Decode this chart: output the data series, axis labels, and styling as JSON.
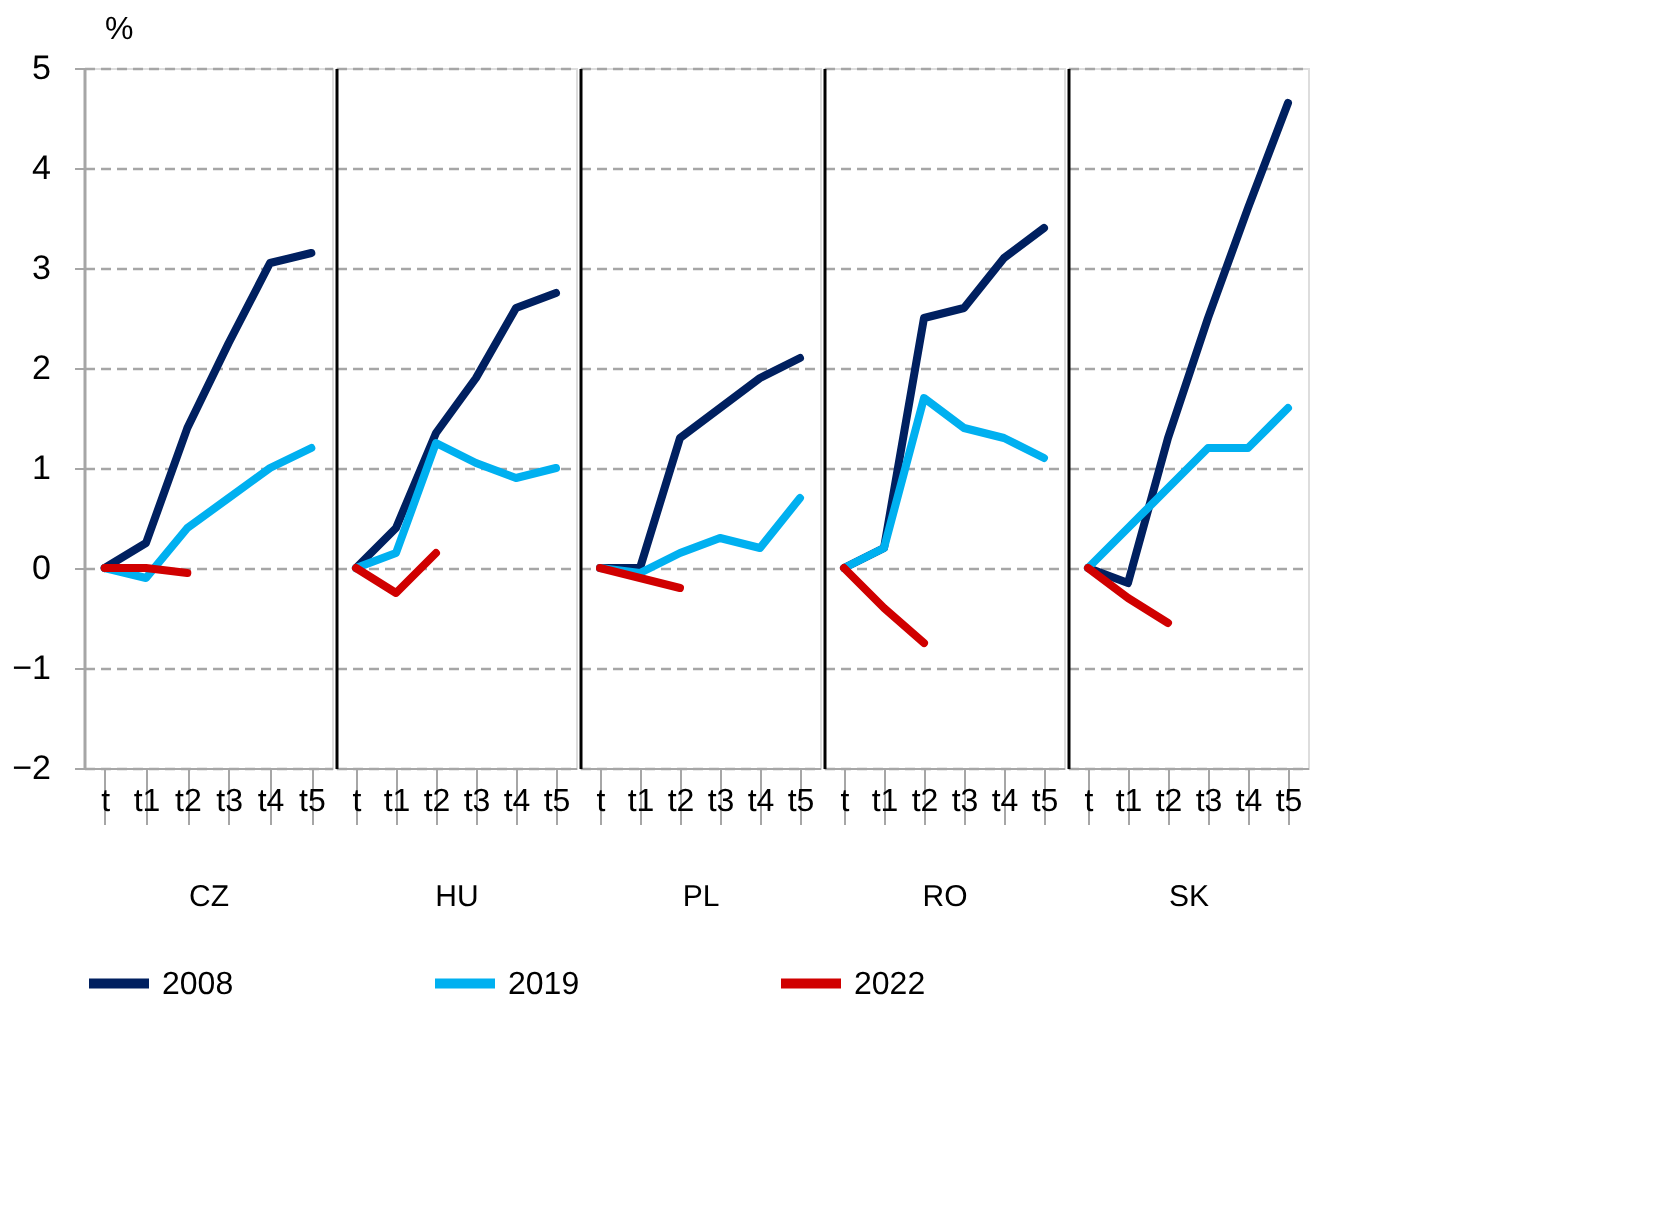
{
  "chart_data": [
    {
      "type": "line",
      "xlabel": "CZ",
      "ylabel": "%",
      "categories": [
        "t",
        "t1",
        "t2",
        "t3",
        "t4",
        "t5"
      ],
      "ylim": [
        -2,
        5
      ],
      "yticks": [
        -2,
        -1,
        0,
        1,
        2,
        3,
        4,
        5
      ],
      "grid": "y",
      "legend": "bottom",
      "line_style": "solid",
      "marker": "none",
      "series": [
        {
          "name": "2008",
          "color": "#002060",
          "values": [
            0,
            0.25,
            1.4,
            2.25,
            3.05,
            3.15
          ]
        },
        {
          "name": "2019",
          "color": "#00b0f0",
          "values": [
            0,
            -0.1,
            0.4,
            0.7,
            1.0,
            1.2
          ]
        },
        {
          "name": "2022",
          "color": "#d00000",
          "values": [
            0,
            0,
            -0.05,
            null,
            null,
            null
          ]
        }
      ]
    },
    {
      "type": "line",
      "xlabel": "HU",
      "categories": [
        "t",
        "t1",
        "t2",
        "t3",
        "t4",
        "t5"
      ],
      "ylim": [
        -2,
        5
      ],
      "yticks": [
        -2,
        -1,
        0,
        1,
        2,
        3,
        4,
        5
      ],
      "grid": "y",
      "legend": "bottom",
      "tick_labels": "x",
      "line_style": "solid",
      "marker": "none",
      "series": [
        {
          "name": "2008",
          "color": "#002060",
          "values": [
            0,
            0.4,
            1.35,
            1.9,
            2.6,
            2.75
          ]
        },
        {
          "name": "2019",
          "color": "#00b0f0",
          "values": [
            0,
            0.15,
            1.25,
            1.05,
            0.9,
            1.0
          ]
        },
        {
          "name": "2022",
          "color": "#d00000",
          "values": [
            0,
            -0.25,
            0.15,
            null,
            null,
            null
          ]
        }
      ]
    },
    {
      "type": "line",
      "xlabel": "PL",
      "categories": [
        "t",
        "t1",
        "t2",
        "t3",
        "t4",
        "t5"
      ],
      "ylim": [
        -2,
        5
      ],
      "yticks": [
        -2,
        -1,
        0,
        1,
        2,
        3,
        4,
        5
      ],
      "grid": "y",
      "legend": "bottom",
      "tick_labels": "x",
      "line_style": "solid",
      "marker": "none",
      "series": [
        {
          "name": "2008",
          "color": "#002060",
          "values": [
            0,
            0,
            1.3,
            1.6,
            1.9,
            2.1
          ]
        },
        {
          "name": "2019",
          "color": "#00b0f0",
          "values": [
            0,
            -0.05,
            0.15,
            0.3,
            0.2,
            0.7
          ]
        },
        {
          "name": "2022",
          "color": "#d00000",
          "values": [
            0,
            -0.1,
            -0.2,
            null,
            null,
            null
          ]
        }
      ]
    },
    {
      "type": "line",
      "xlabel": "RO",
      "categories": [
        "t",
        "t1",
        "t2",
        "t3",
        "t4",
        "t5"
      ],
      "ylim": [
        -2,
        5
      ],
      "yticks": [
        -2,
        -1,
        0,
        1,
        2,
        3,
        4,
        5
      ],
      "grid": "y",
      "legend": "bottom",
      "tick_labels": "x",
      "line_style": "solid",
      "marker": "none",
      "series": [
        {
          "name": "2008",
          "color": "#002060",
          "values": [
            0,
            0.2,
            2.5,
            2.6,
            3.1,
            3.4
          ]
        },
        {
          "name": "2019",
          "color": "#00b0f0",
          "values": [
            0,
            0.2,
            1.7,
            1.4,
            1.3,
            1.1
          ]
        },
        {
          "name": "2022",
          "color": "#d00000",
          "values": [
            0,
            -0.4,
            -0.75,
            null,
            null,
            null
          ]
        }
      ]
    },
    {
      "type": "line",
      "xlabel": "SK",
      "categories": [
        "t",
        "t1",
        "t2",
        "t3",
        "t4",
        "t5"
      ],
      "ylim": [
        -2,
        5
      ],
      "yticks": [
        -2,
        -1,
        0,
        1,
        2,
        3,
        4,
        5
      ],
      "grid": "y",
      "legend": "bottom",
      "tick_labels": "x",
      "line_style": "solid",
      "marker": "none",
      "series": [
        {
          "name": "2008",
          "color": "#002060",
          "values": [
            0,
            -0.15,
            1.3,
            2.5,
            3.6,
            4.65
          ]
        },
        {
          "name": "2019",
          "color": "#00b0f0",
          "values": [
            0,
            0.4,
            0.8,
            1.2,
            1.2,
            1.6
          ]
        },
        {
          "name": "2022",
          "color": "#d00000",
          "values": [
            0,
            -0.3,
            -0.55,
            null,
            null,
            null
          ]
        }
      ]
    }
  ]
}
